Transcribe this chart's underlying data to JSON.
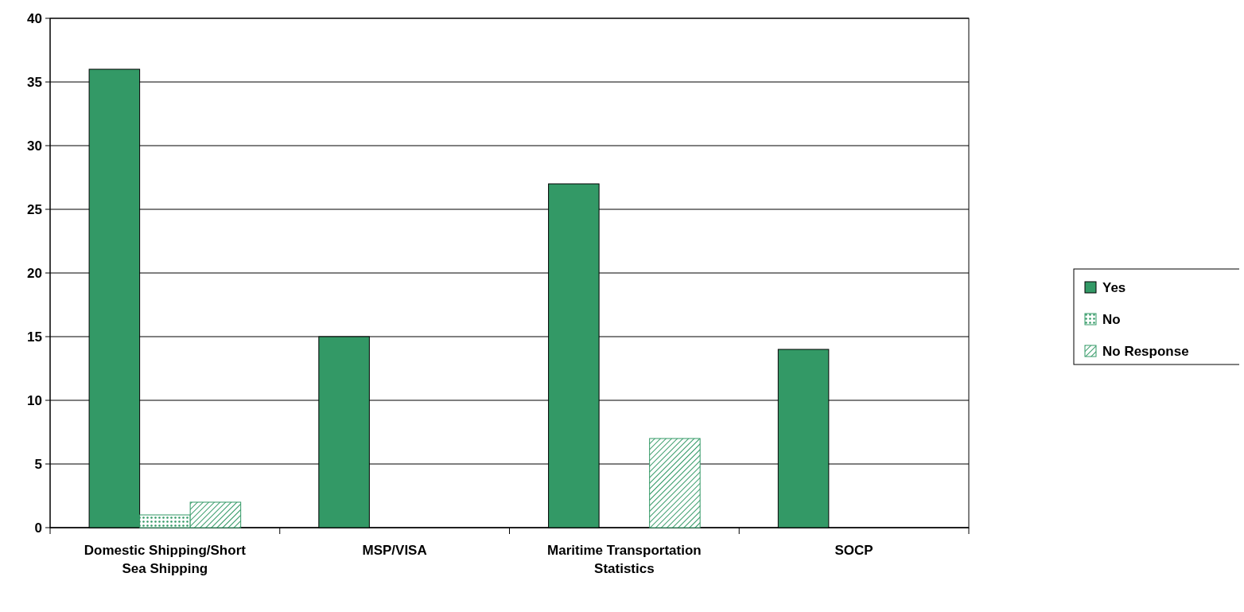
{
  "chart_data": {
    "type": "bar",
    "categories": [
      "Domestic Shipping/Short Sea Shipping",
      "MSP/VISA",
      "Maritime Transportation Statistics",
      "SOCP"
    ],
    "series": [
      {
        "name": "Yes",
        "color": "#339966",
        "values": [
          36,
          15,
          27,
          14
        ]
      },
      {
        "name": "No",
        "color": "#339966",
        "values": [
          1,
          0,
          0,
          0
        ]
      },
      {
        "name": "No Response",
        "color": "#339966",
        "values": [
          2,
          0,
          7,
          0
        ]
      }
    ],
    "ylim": [
      0,
      40
    ],
    "yticks": [
      0,
      5,
      10,
      15,
      20,
      25,
      30,
      35,
      40
    ],
    "grid": "y",
    "legend": "right"
  }
}
